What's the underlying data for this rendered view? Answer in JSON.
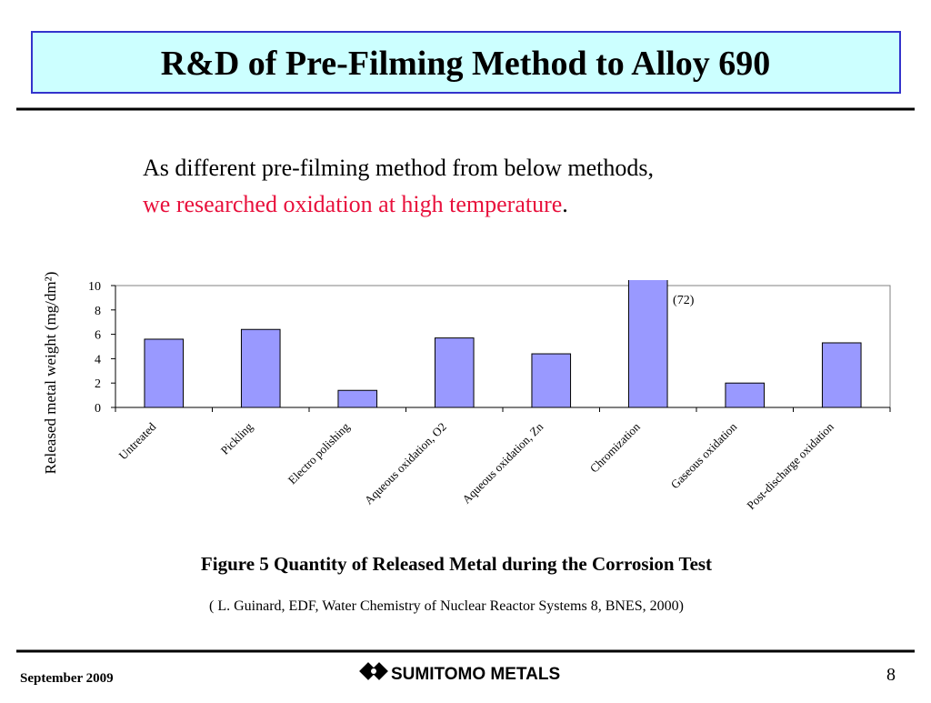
{
  "slide": {
    "title": "R&D of Pre-Filming Method to Alloy 690",
    "intro_line1": "As different pre-filming method from below methods,",
    "intro_highlight": "we researched oxidation at high temperature",
    "intro_end": ".",
    "citation": "( L. Guinard, EDF, Water Chemistry of Nuclear Reactor Systems 8, BNES, 2000)",
    "date": "September 2009",
    "logo": "SUMITOMO METALS",
    "page": "8"
  },
  "chart_data": {
    "type": "bar",
    "title": "Figure 5 Quantity of Released Metal during the Corrosion Test",
    "y_label": "Released metal weight (mg/dm²)",
    "categories": [
      "Untreated",
      "Pickling",
      "Electro polishing",
      "Aqueous oxidation, O2",
      "Aqueous oxidation, Zn",
      "Chromization",
      "Gaseous oxidation",
      "Post-discharge oxidation"
    ],
    "values": [
      5.6,
      6.4,
      1.4,
      5.7,
      4.4,
      72,
      2.0,
      5.3
    ],
    "value_labels": [
      null,
      null,
      null,
      null,
      null,
      "(72)",
      null,
      null
    ],
    "color": "#9999ff",
    "ylim": [
      0,
      10
    ],
    "yticks": [
      0,
      2,
      4,
      6,
      8,
      10
    ],
    "grid": false
  }
}
